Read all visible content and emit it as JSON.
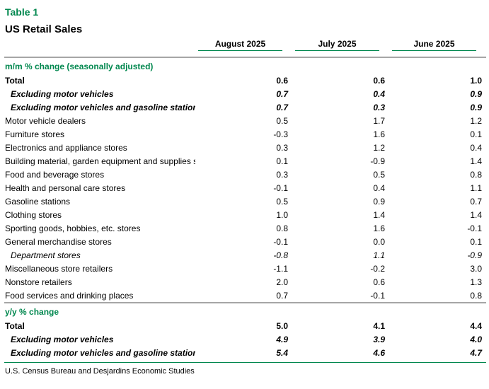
{
  "title": "Table 1",
  "subtitle": "US Retail Sales",
  "columns": [
    "August 2025",
    "July 2025",
    "June 2025"
  ],
  "colors": {
    "accent_green": "#00874E",
    "divider_gray": "#A6A6A6",
    "text": "#000000"
  },
  "sections": [
    {
      "header": "m/m % change (seasonally adjusted)",
      "rows": [
        {
          "label": "Total",
          "style": "bold",
          "indent": false,
          "values": [
            "0.6",
            "0.6",
            "1.0"
          ]
        },
        {
          "label": "Excluding motor vehicles",
          "style": "bold-italic",
          "indent": true,
          "values": [
            "0.7",
            "0.4",
            "0.9"
          ]
        },
        {
          "label": "Excluding motor vehicles and gasoline stations",
          "style": "bold-italic",
          "indent": true,
          "values": [
            "0.7",
            "0.3",
            "0.9"
          ]
        },
        {
          "label": "Motor vehicle dealers",
          "style": "normal",
          "indent": false,
          "values": [
            "0.5",
            "1.7",
            "1.2"
          ]
        },
        {
          "label": "Furniture stores",
          "style": "normal",
          "indent": false,
          "values": [
            "-0.3",
            "1.6",
            "0.1"
          ]
        },
        {
          "label": "Electronics and appliance stores",
          "style": "normal",
          "indent": false,
          "values": [
            "0.3",
            "1.2",
            "0.4"
          ]
        },
        {
          "label": "Building material, garden equipment and supplies s",
          "style": "normal",
          "indent": false,
          "values": [
            "0.1",
            "-0.9",
            "1.4"
          ]
        },
        {
          "label": "Food and beverage stores",
          "style": "normal",
          "indent": false,
          "values": [
            "0.3",
            "0.5",
            "0.8"
          ]
        },
        {
          "label": "Health and personal care stores",
          "style": "normal",
          "indent": false,
          "values": [
            "-0.1",
            "0.4",
            "1.1"
          ]
        },
        {
          "label": "Gasoline stations",
          "style": "normal",
          "indent": false,
          "values": [
            "0.5",
            "0.9",
            "0.7"
          ]
        },
        {
          "label": "Clothing stores",
          "style": "normal",
          "indent": false,
          "values": [
            "1.0",
            "1.4",
            "1.4"
          ]
        },
        {
          "label": "Sporting goods, hobbies, etc. stores",
          "style": "normal",
          "indent": false,
          "values": [
            "0.8",
            "1.6",
            "-0.1"
          ]
        },
        {
          "label": "General merchandise stores",
          "style": "normal",
          "indent": false,
          "values": [
            "-0.1",
            "0.0",
            "0.1"
          ]
        },
        {
          "label": "Department stores",
          "style": "italic",
          "indent": true,
          "values": [
            "-0.8",
            "1.1",
            "-0.9"
          ]
        },
        {
          "label": "Miscellaneous store retailers",
          "style": "normal",
          "indent": false,
          "values": [
            "-1.1",
            "-0.2",
            "3.0"
          ]
        },
        {
          "label": "Nonstore retailers",
          "style": "normal",
          "indent": false,
          "values": [
            "2.0",
            "0.6",
            "1.3"
          ]
        },
        {
          "label": "Food services and drinking places",
          "style": "normal",
          "indent": false,
          "values": [
            "0.7",
            "-0.1",
            "0.8"
          ]
        }
      ]
    },
    {
      "header": "y/y % change",
      "rows": [
        {
          "label": "Total",
          "style": "bold",
          "indent": false,
          "values": [
            "5.0",
            "4.1",
            "4.4"
          ]
        },
        {
          "label": "Excluding motor vehicles",
          "style": "bold-italic",
          "indent": true,
          "values": [
            "4.9",
            "3.9",
            "4.0"
          ]
        },
        {
          "label": "Excluding motor vehicles and gasoline stations",
          "style": "bold-italic",
          "indent": true,
          "values": [
            "5.4",
            "4.6",
            "4.7"
          ]
        }
      ]
    }
  ],
  "source": "U.S. Census Bureau and Desjardins Economic Studies"
}
